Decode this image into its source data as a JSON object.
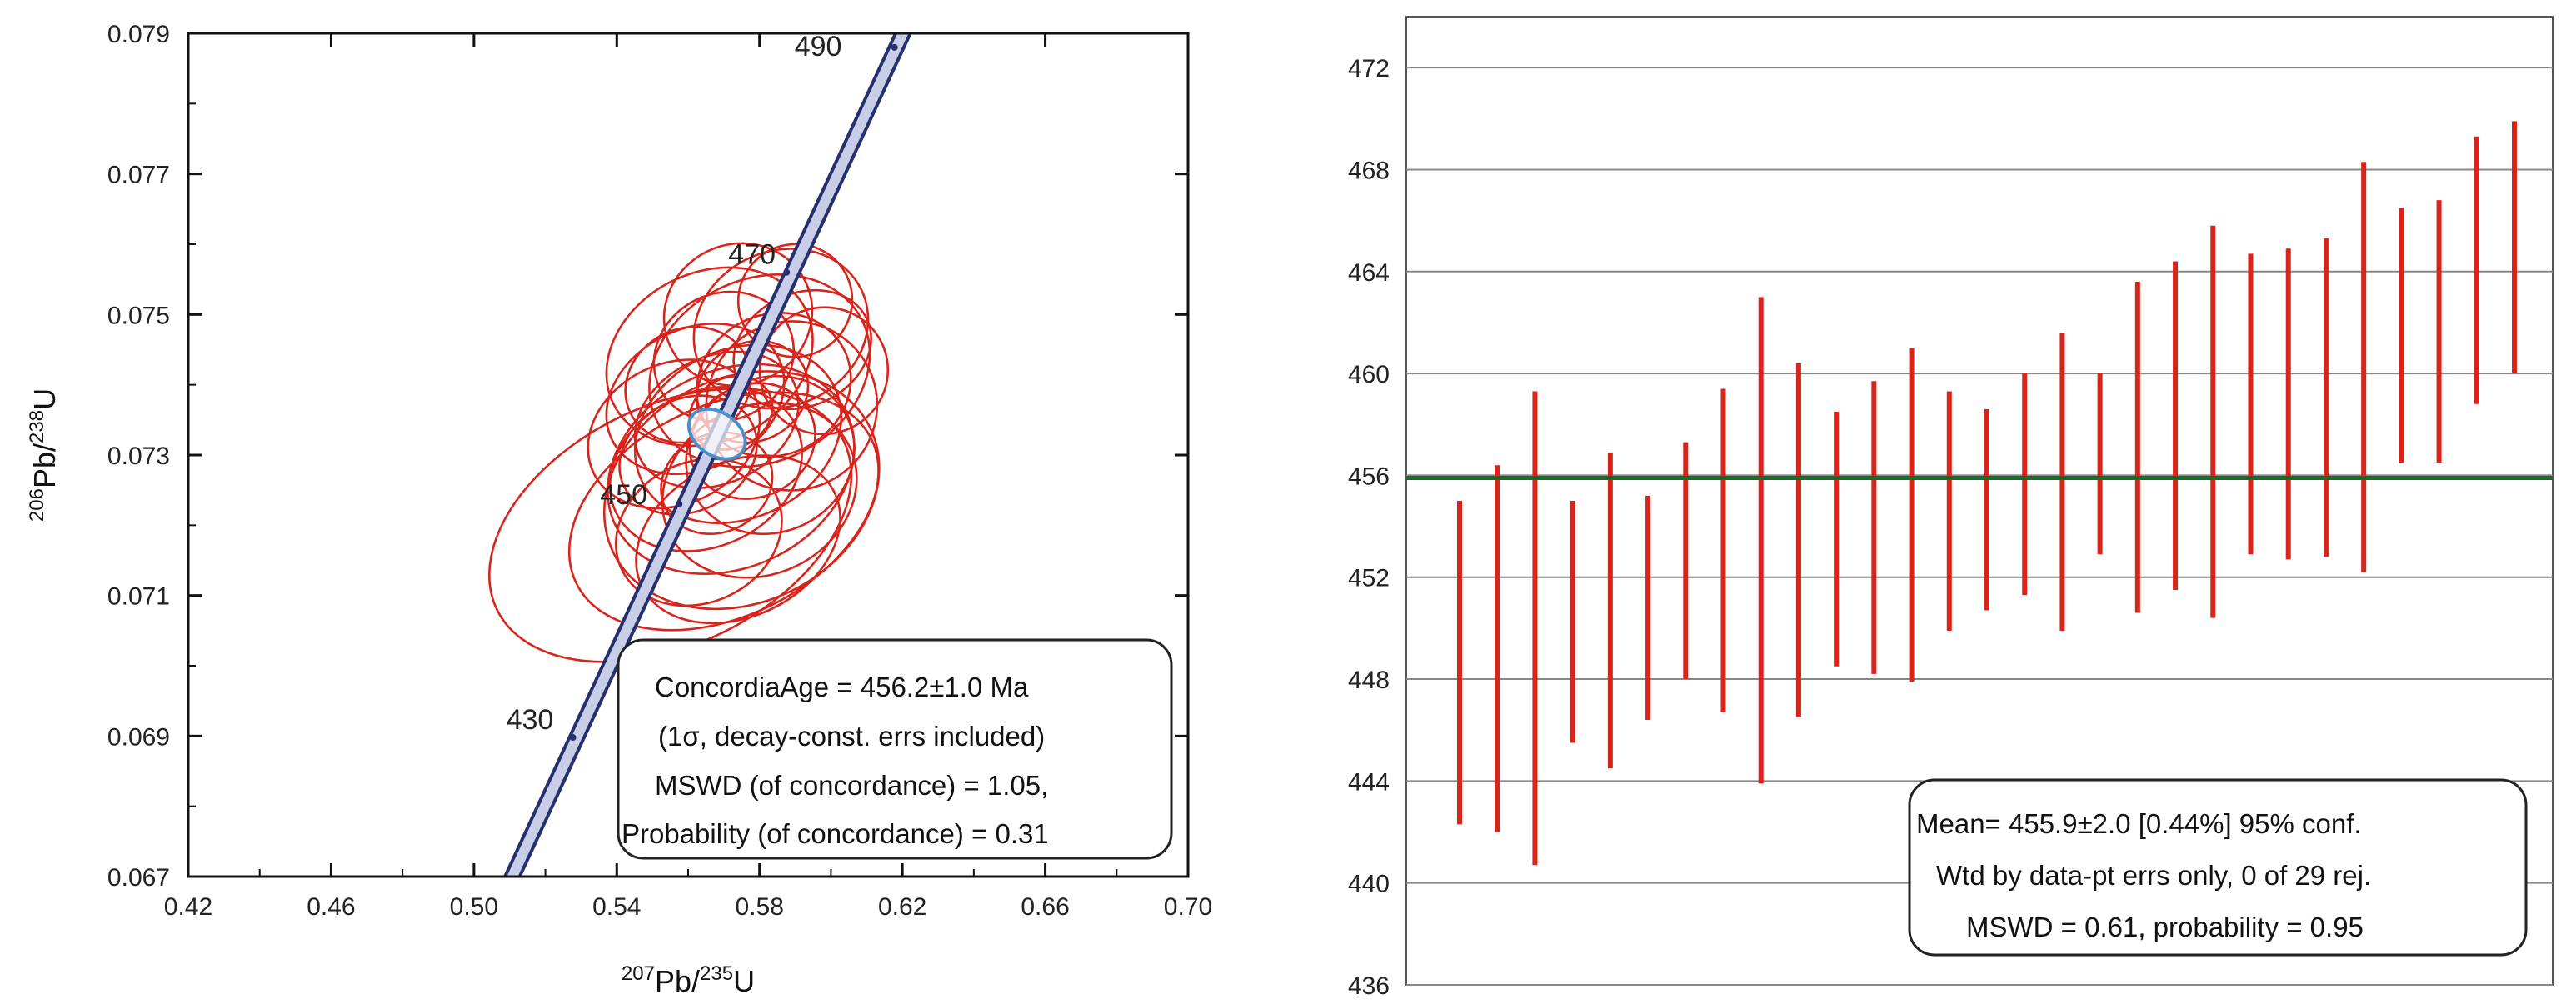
{
  "chart_data": [
    {
      "type": "scatter",
      "subtype": "concordia",
      "xlabel": {
        "iso1": "207",
        "el1": "Pb",
        "sep": "/",
        "iso2": "235",
        "el2": "U"
      },
      "ylabel": {
        "iso1": "206",
        "el1": "Pb",
        "sep": "/",
        "iso2": "238",
        "el2": "U"
      },
      "xlim": [
        0.42,
        0.7
      ],
      "ylim": [
        0.067,
        0.079
      ],
      "x_ticks": [
        "0.42",
        "0.46",
        "0.50",
        "0.54",
        "0.58",
        "0.62",
        "0.66",
        "0.70"
      ],
      "y_ticks": [
        "0.067",
        "0.069",
        "0.071",
        "0.073",
        "0.075",
        "0.077",
        "0.079"
      ],
      "concordia_ages": [
        {
          "age": "430",
          "x": 0.5277,
          "y": 0.06898
        },
        {
          "age": "450",
          "x": 0.5575,
          "y": 0.0723
        },
        {
          "age": "470",
          "x": 0.5876,
          "y": 0.0756
        },
        {
          "age": "490",
          "x": 0.6178,
          "y": 0.0788
        }
      ],
      "concordia_line": {
        "x": [
          0.508,
          0.622
        ],
        "y": [
          0.0667,
          0.0792
        ]
      },
      "concordia_age_ellipse": {
        "cx": 0.5681,
        "cy": 0.0733,
        "rx": 0.006,
        "ry": 0.0002
      },
      "ellipses": [
        {
          "cx": 0.555,
          "cy": 0.072,
          "rx": 0.054,
          "ry": 0.0017
        },
        {
          "cx": 0.57,
          "cy": 0.0722,
          "rx": 0.046,
          "ry": 0.0015
        },
        {
          "cx": 0.572,
          "cy": 0.0728,
          "rx": 0.036,
          "ry": 0.0014
        },
        {
          "cx": 0.58,
          "cy": 0.0742,
          "rx": 0.032,
          "ry": 0.0013
        },
        {
          "cx": 0.586,
          "cy": 0.0748,
          "rx": 0.025,
          "ry": 0.0011
        },
        {
          "cx": 0.574,
          "cy": 0.0733,
          "rx": 0.03,
          "ry": 0.0012
        },
        {
          "cx": 0.565,
          "cy": 0.0728,
          "rx": 0.028,
          "ry": 0.0011
        },
        {
          "cx": 0.568,
          "cy": 0.0735,
          "rx": 0.024,
          "ry": 0.0009
        },
        {
          "cx": 0.584,
          "cy": 0.074,
          "rx": 0.022,
          "ry": 0.001
        },
        {
          "cx": 0.592,
          "cy": 0.0745,
          "rx": 0.02,
          "ry": 0.0008
        },
        {
          "cx": 0.575,
          "cy": 0.0725,
          "rx": 0.04,
          "ry": 0.0016
        },
        {
          "cx": 0.562,
          "cy": 0.0738,
          "rx": 0.026,
          "ry": 0.001
        },
        {
          "cx": 0.56,
          "cy": 0.073,
          "rx": 0.02,
          "ry": 0.0008
        },
        {
          "cx": 0.578,
          "cy": 0.0732,
          "rx": 0.018,
          "ry": 0.0008
        },
        {
          "cx": 0.57,
          "cy": 0.0744,
          "rx": 0.02,
          "ry": 0.0009
        },
        {
          "cx": 0.583,
          "cy": 0.073,
          "rx": 0.024,
          "ry": 0.0011
        },
        {
          "cx": 0.574,
          "cy": 0.075,
          "rx": 0.021,
          "ry": 0.001
        },
        {
          "cx": 0.563,
          "cy": 0.0719,
          "rx": 0.024,
          "ry": 0.001
        },
        {
          "cx": 0.589,
          "cy": 0.0737,
          "rx": 0.024,
          "ry": 0.0012
        },
        {
          "cx": 0.568,
          "cy": 0.0726,
          "rx": 0.016,
          "ry": 0.0007
        },
        {
          "cx": 0.578,
          "cy": 0.0739,
          "rx": 0.016,
          "ry": 0.0007
        },
        {
          "cx": 0.556,
          "cy": 0.0733,
          "rx": 0.025,
          "ry": 0.001
        },
        {
          "cx": 0.598,
          "cy": 0.0742,
          "rx": 0.018,
          "ry": 0.0009
        },
        {
          "cx": 0.566,
          "cy": 0.0744,
          "rx": 0.03,
          "ry": 0.0012
        },
        {
          "cx": 0.58,
          "cy": 0.0725,
          "rx": 0.028,
          "ry": 0.0012
        },
        {
          "cx": 0.572,
          "cy": 0.0736,
          "rx": 0.012,
          "ry": 0.0005
        },
        {
          "cx": 0.574,
          "cy": 0.0718,
          "rx": 0.03,
          "ry": 0.0011
        },
        {
          "cx": 0.59,
          "cy": 0.0752,
          "rx": 0.016,
          "ry": 0.0008
        },
        {
          "cx": 0.56,
          "cy": 0.074,
          "rx": 0.018,
          "ry": 0.0008
        }
      ],
      "stats": [
        "ConcordiaAge = 456.2±1.0 Ma",
        "(1σ, decay-const. errs included)",
        "MSWD (of concordance) = 1.05,",
        "Probability (of concordance) = 0.31"
      ],
      "colors": {
        "ellipse": "#d9241c",
        "concordia": "#27306e",
        "concordia_fill": "#c8cde8",
        "age_ellipse": "#4a90c8"
      }
    },
    {
      "type": "bar",
      "subtype": "weighted-mean-error-bars",
      "ylim": [
        436,
        474
      ],
      "y_ticks": [
        "436",
        "440",
        "444",
        "448",
        "452",
        "456",
        "460",
        "464",
        "468",
        "472"
      ],
      "grid": true,
      "mean_line": 455.9,
      "bars": [
        {
          "low": 442.3,
          "high": 455.0
        },
        {
          "low": 442.0,
          "high": 456.4
        },
        {
          "low": 440.7,
          "high": 459.3
        },
        {
          "low": 445.5,
          "high": 455.0
        },
        {
          "low": 444.5,
          "high": 456.9
        },
        {
          "low": 446.4,
          "high": 455.2
        },
        {
          "low": 448.0,
          "high": 457.3
        },
        {
          "low": 446.7,
          "high": 459.4
        },
        {
          "low": 443.9,
          "high": 463.0
        },
        {
          "low": 446.5,
          "high": 460.4
        },
        {
          "low": 448.5,
          "high": 458.5
        },
        {
          "low": 448.2,
          "high": 459.7
        },
        {
          "low": 447.9,
          "high": 461.0
        },
        {
          "low": 449.9,
          "high": 459.3
        },
        {
          "low": 450.7,
          "high": 458.6
        },
        {
          "low": 451.3,
          "high": 460.0
        },
        {
          "low": 449.9,
          "high": 461.6
        },
        {
          "low": 452.9,
          "high": 460.0
        },
        {
          "low": 450.6,
          "high": 463.6
        },
        {
          "low": 451.5,
          "high": 464.4
        },
        {
          "low": 450.4,
          "high": 465.8
        },
        {
          "low": 452.9,
          "high": 464.7
        },
        {
          "low": 452.7,
          "high": 464.9
        },
        {
          "low": 452.8,
          "high": 465.3
        },
        {
          "low": 452.2,
          "high": 468.3
        },
        {
          "low": 456.5,
          "high": 466.5
        },
        {
          "low": 456.5,
          "high": 466.8
        },
        {
          "low": 458.8,
          "high": 469.3
        },
        {
          "low": 460.0,
          "high": 469.9
        }
      ],
      "stats": [
        "Mean= 455.9±2.0  [0.44%]  95% conf.",
        "Wtd by data-pt errs only, 0 of 29 rej.",
        "MSWD = 0.61, probability = 0.95"
      ],
      "colors": {
        "bar": "#d9241c",
        "mean": "#1a6a2a",
        "grid": "#888888"
      }
    }
  ]
}
